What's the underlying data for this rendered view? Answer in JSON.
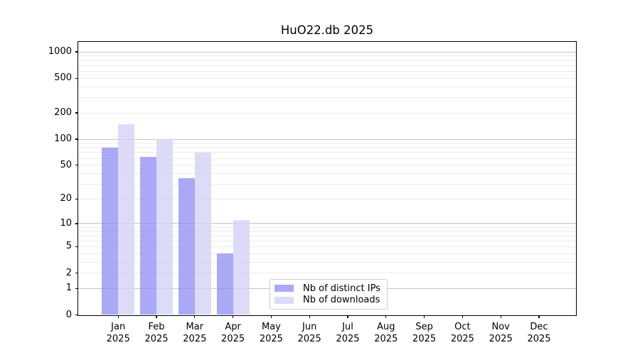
{
  "chart_data": {
    "type": "bar",
    "title": "HuO22.db 2025",
    "categories": [
      "Jan",
      "Feb",
      "Mar",
      "Apr",
      "May",
      "Jun",
      "Jul",
      "Aug",
      "Sep",
      "Oct",
      "Nov",
      "Dec"
    ],
    "category_year": "2025",
    "series": [
      {
        "name": "Nb of distinct IPs",
        "color": "#9494f3cc",
        "values": [
          80,
          63,
          35,
          4,
          0,
          0,
          0,
          0,
          0,
          0,
          0,
          0
        ]
      },
      {
        "name": "Nb of downloads",
        "color": "#d3d3f6cc",
        "values": [
          148,
          100,
          70,
          11,
          0,
          0,
          0,
          0,
          0,
          0,
          0,
          0
        ]
      }
    ],
    "y_ticks": [
      0,
      1,
      2,
      5,
      10,
      20,
      50,
      100,
      200,
      500,
      1000
    ],
    "y_scale": "log1p",
    "ylim": [
      0,
      1300
    ],
    "xlabel": "",
    "ylabel": "",
    "grid": "on",
    "legend_position": "lower-center-inside"
  }
}
